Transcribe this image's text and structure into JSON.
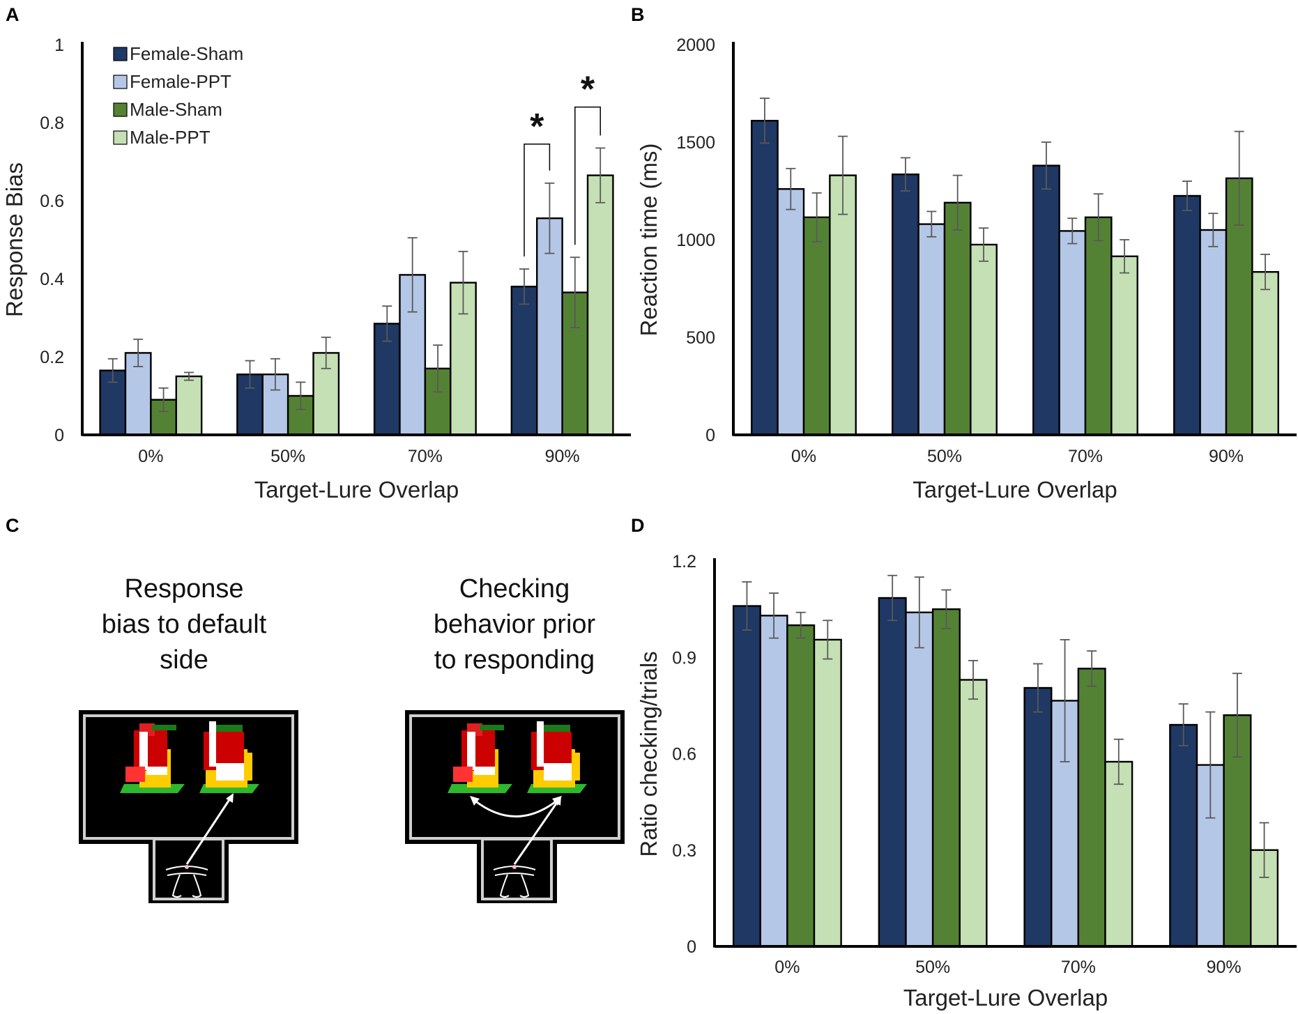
{
  "figure_labels": {
    "a": "A",
    "b": "B",
    "c": "C",
    "d": "D"
  },
  "colors": {
    "Female-Sham": "#1f3864",
    "Female-PPT": "#b4c7e7",
    "Male-Sham": "#548235",
    "Male-PPT": "#c5e0b4",
    "error_bar": "#595959",
    "axis": "#000000"
  },
  "legend": [
    "Female-Sham",
    "Female-PPT",
    "Male-Sham",
    "Male-PPT"
  ],
  "chart_data": [
    {
      "panel": "A",
      "type": "bar",
      "categories": [
        "0%",
        "50%",
        "70%",
        "90%"
      ],
      "xlabel": "Target-Lure  Overlap",
      "ylabel": "Response Bias",
      "ylim": [
        0,
        1
      ],
      "yticks": [
        0,
        0.2,
        0.4,
        0.6,
        0.8,
        1
      ],
      "ytick_labels": [
        "0",
        "0.2",
        "0.4",
        "0.6",
        "0.8",
        "1"
      ],
      "series": [
        {
          "name": "Female-Sham",
          "values": [
            0.165,
            0.155,
            0.285,
            0.38
          ],
          "errors": [
            0.03,
            0.035,
            0.045,
            0.045
          ]
        },
        {
          "name": "Female-PPT",
          "values": [
            0.21,
            0.155,
            0.41,
            0.555
          ],
          "errors": [
            0.035,
            0.04,
            0.095,
            0.09
          ]
        },
        {
          "name": "Male-Sham",
          "values": [
            0.09,
            0.1,
            0.17,
            0.365
          ],
          "errors": [
            0.03,
            0.035,
            0.06,
            0.09
          ]
        },
        {
          "name": "Male-PPT",
          "values": [
            0.15,
            0.21,
            0.39,
            0.665
          ],
          "errors": [
            0.01,
            0.04,
            0.08,
            0.07
          ]
        }
      ],
      "significance": [
        {
          "category": "90%",
          "pair": [
            "Female-Sham",
            "Female-PPT"
          ],
          "label": "*",
          "bracket_y": 0.745
        },
        {
          "category": "90%",
          "pair": [
            "Male-Sham",
            "Male-PPT"
          ],
          "label": "*",
          "bracket_y": 0.84
        }
      ]
    },
    {
      "panel": "B",
      "type": "bar",
      "categories": [
        "0%",
        "50%",
        "70%",
        "90%"
      ],
      "xlabel": "Target-Lure  Overlap",
      "ylabel": "Reaction time (ms)",
      "ylim": [
        0,
        2000
      ],
      "yticks": [
        0,
        500,
        1000,
        1500,
        2000
      ],
      "ytick_labels": [
        "0",
        "500",
        "1000",
        "1500",
        "2000"
      ],
      "series": [
        {
          "name": "Female-Sham",
          "values": [
            1610,
            1335,
            1380,
            1225
          ],
          "errors": [
            115,
            85,
            120,
            75
          ]
        },
        {
          "name": "Female-PPT",
          "values": [
            1260,
            1080,
            1045,
            1050
          ],
          "errors": [
            105,
            65,
            65,
            85
          ]
        },
        {
          "name": "Male-Sham",
          "values": [
            1115,
            1190,
            1115,
            1315
          ],
          "errors": [
            125,
            140,
            120,
            240
          ]
        },
        {
          "name": "Male-PPT",
          "values": [
            1330,
            975,
            915,
            835
          ],
          "errors": [
            200,
            85,
            85,
            90
          ]
        }
      ]
    },
    {
      "panel": "D",
      "type": "bar",
      "categories": [
        "0%",
        "50%",
        "70%",
        "90%"
      ],
      "xlabel": "Target-Lure  Overlap",
      "ylabel": "Ratio checking/trials",
      "ylim": [
        0,
        1.2
      ],
      "yticks": [
        0,
        0.3,
        0.6,
        0.9,
        1.2
      ],
      "ytick_labels": [
        "0",
        "0.3",
        "0.6",
        "0.9",
        "1.2"
      ],
      "series": [
        {
          "name": "Female-Sham",
          "values": [
            1.06,
            1.085,
            0.805,
            0.69
          ],
          "errors": [
            0.075,
            0.07,
            0.075,
            0.065
          ]
        },
        {
          "name": "Female-PPT",
          "values": [
            1.03,
            1.04,
            0.765,
            0.565
          ],
          "errors": [
            0.07,
            0.11,
            0.19,
            0.165
          ]
        },
        {
          "name": "Male-Sham",
          "values": [
            1.0,
            1.05,
            0.865,
            0.72
          ],
          "errors": [
            0.04,
            0.06,
            0.055,
            0.13
          ]
        },
        {
          "name": "Male-PPT",
          "values": [
            0.955,
            0.83,
            0.575,
            0.3
          ],
          "errors": [
            0.06,
            0.06,
            0.07,
            0.085
          ]
        }
      ]
    }
  ],
  "diagram": {
    "left_caption": [
      "Response",
      "bias to default",
      "side"
    ],
    "right_caption": [
      "Checking",
      "behavior prior",
      "to responding"
    ],
    "left_icon": "touchscreen-chamber-icon",
    "right_icon": "touchscreen-chamber-checking-icon"
  }
}
